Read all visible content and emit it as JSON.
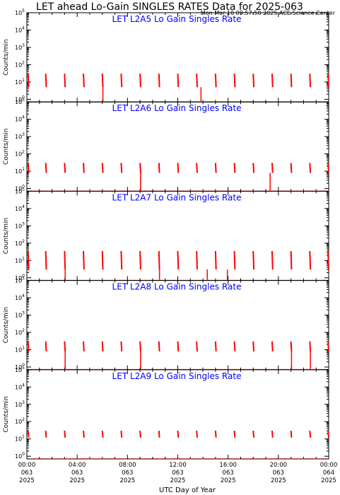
{
  "header": {
    "title": "LET ahead Lo-Gain SINGLES RATES Data for 2025-063",
    "timestamp": "Mon Mar 10 09:57:50 2025 ACE Science Center"
  },
  "footer": {
    "xlabel": "UTC Day of Year"
  },
  "colors": {
    "data": "#ff0000",
    "panel_title": "#0000ff",
    "axes": "#000000",
    "background": "#ffffff"
  },
  "chart_data": [
    {
      "type": "scatter",
      "title": "LET L2A5 Lo Gain Singles Rate",
      "ylabel": "Counts/min",
      "xlim": [
        0,
        24
      ],
      "ylim": [
        0.7,
        100000
      ],
      "yscale": "log",
      "x_tick_hours": [
        0,
        4,
        8,
        12,
        16,
        20,
        24
      ],
      "x_tick_labels": [
        [
          "00:00",
          "063",
          "2025"
        ],
        [
          "04:00",
          "063",
          "2025"
        ],
        [
          "08:00",
          "063",
          "2025"
        ],
        [
          "12:00",
          "063",
          "2025"
        ],
        [
          "16:00",
          "063",
          "2025"
        ],
        [
          "20:00",
          "063",
          "2025"
        ],
        [
          "00:00",
          "064",
          "2025"
        ]
      ],
      "y_tick_labels": [
        "10^0",
        "10^1",
        "10^2",
        "10^3",
        "10^4",
        "10^5"
      ],
      "burst_hours": [
        0.1,
        1.5,
        3.0,
        4.5,
        6.0,
        7.5,
        9.0,
        10.5,
        12.0,
        13.5,
        15.0,
        16.5,
        18.0,
        19.5,
        21.0,
        22.5,
        23.95
      ],
      "drop_hours": [
        6.0,
        13.8
      ],
      "burst_peak": 30,
      "burst_low": 5
    },
    {
      "type": "scatter",
      "title": "LET L2A6 Lo Gain Singles Rate",
      "ylabel": "Counts/min",
      "xlim": [
        0,
        24
      ],
      "ylim": [
        0.7,
        100000
      ],
      "yscale": "log",
      "x_tick_hours": [
        0,
        4,
        8,
        12,
        16,
        20,
        24
      ],
      "y_tick_labels": [
        "10^0",
        "10^1",
        "10^2",
        "10^3",
        "10^4",
        "10^5"
      ],
      "burst_hours": [
        0.1,
        1.5,
        3.0,
        4.5,
        6.0,
        7.5,
        9.0,
        10.5,
        12.0,
        13.5,
        15.0,
        16.5,
        18.0,
        19.5,
        21.0,
        22.5,
        23.95
      ],
      "drop_hours": [
        9.0,
        19.3
      ],
      "burst_peak": 30,
      "burst_low": 8
    },
    {
      "type": "scatter",
      "title": "LET L2A7 Lo Gain Singles Rate",
      "ylabel": "Counts/min",
      "xlim": [
        0,
        24
      ],
      "ylim": [
        0.7,
        100000
      ],
      "yscale": "log",
      "x_tick_hours": [
        0,
        4,
        8,
        12,
        16,
        20,
        24
      ],
      "y_tick_labels": [
        "10^0",
        "10^1",
        "10^2",
        "10^3",
        "10^4",
        "10^5"
      ],
      "burst_hours": [
        0.1,
        1.5,
        3.0,
        4.5,
        6.0,
        7.5,
        9.0,
        10.5,
        12.0,
        13.5,
        15.0,
        16.5,
        18.0,
        19.5,
        21.0,
        22.5,
        23.95
      ],
      "drop_hours": [
        3.0,
        10.5,
        14.3,
        15.9
      ],
      "burst_peak": 35,
      "burst_low": 3
    },
    {
      "type": "scatter",
      "title": "LET L2A8 Lo Gain Singles Rate",
      "ylabel": "Counts/min",
      "xlim": [
        0,
        24
      ],
      "ylim": [
        0.7,
        100000
      ],
      "yscale": "log",
      "x_tick_hours": [
        0,
        4,
        8,
        12,
        16,
        20,
        24
      ],
      "y_tick_labels": [
        "10^0",
        "10^1",
        "10^2",
        "10^3",
        "10^4",
        "10^5"
      ],
      "burst_hours": [
        0.1,
        1.5,
        3.0,
        4.5,
        6.0,
        7.5,
        9.0,
        10.5,
        12.0,
        13.5,
        15.0,
        16.5,
        18.0,
        19.5,
        21.0,
        22.5,
        23.95
      ],
      "drop_hours": [
        3.0,
        9.0,
        21.0,
        22.5
      ],
      "burst_peak": 30,
      "burst_low": 8
    },
    {
      "type": "scatter",
      "title": "LET L2A9 Lo Gain Singles Rate",
      "ylabel": "Counts/min",
      "xlim": [
        0,
        24
      ],
      "ylim": [
        0.7,
        100000
      ],
      "yscale": "log",
      "x_tick_hours": [
        0,
        4,
        8,
        12,
        16,
        20,
        24
      ],
      "y_tick_labels": [
        "10^0",
        "10^1",
        "10^2",
        "10^3",
        "10^4",
        "10^5"
      ],
      "burst_hours": [
        0.1,
        1.5,
        3.0,
        4.5,
        6.0,
        7.5,
        9.0,
        10.5,
        12.0,
        13.5,
        15.0,
        16.5,
        18.0,
        19.5,
        21.0,
        22.5,
        23.95
      ],
      "drop_hours": [],
      "burst_peak": 30,
      "burst_low": 12
    }
  ]
}
